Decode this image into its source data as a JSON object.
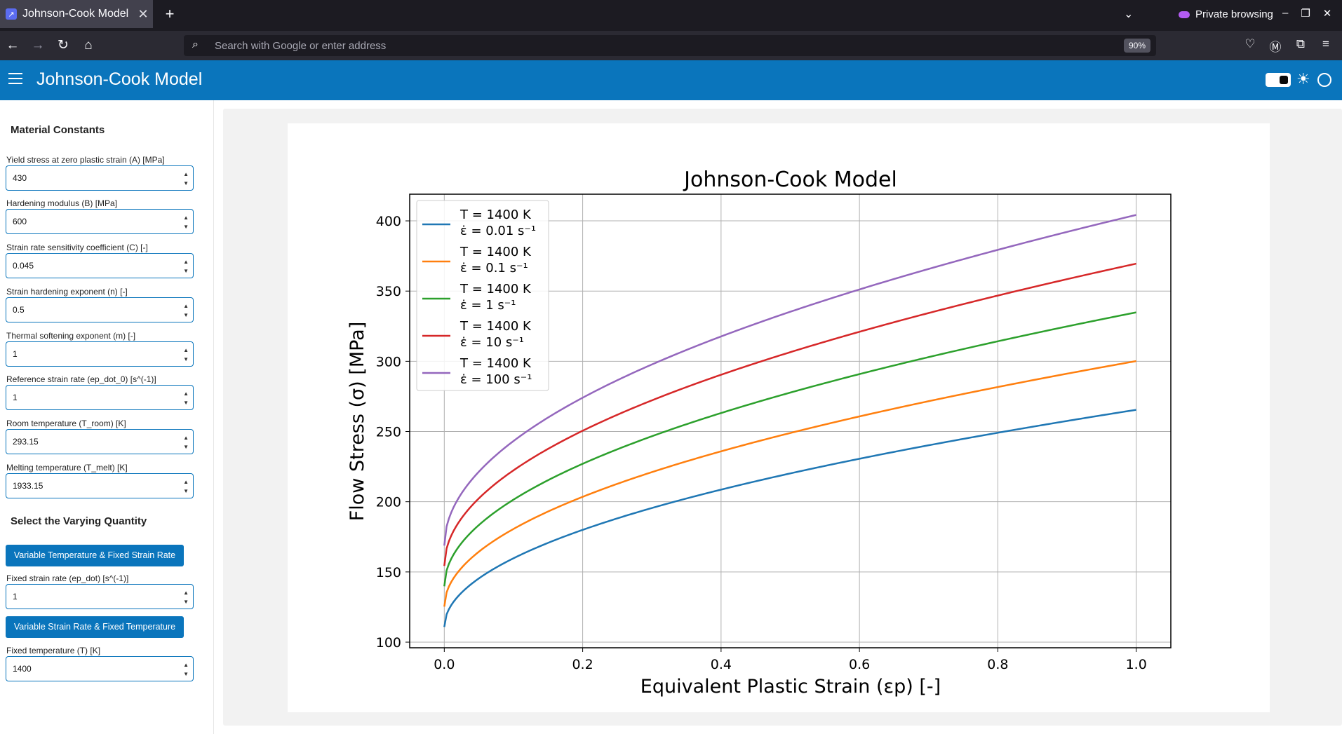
{
  "browser": {
    "tab_title": "Johnson-Cook Model",
    "private_label": "Private browsing",
    "search_placeholder": "Search with Google or enter address",
    "zoom": "90%"
  },
  "app": {
    "title": "Johnson-Cook Model"
  },
  "sidebar": {
    "material_title": "Material Constants",
    "fields": [
      {
        "label": "Yield stress at zero plastic strain (A) [MPa]",
        "value": "430"
      },
      {
        "label": "Hardening modulus (B) [MPa]",
        "value": "600"
      },
      {
        "label": "Strain rate sensitivity coefficient (C) [-]",
        "value": "0.045"
      },
      {
        "label": "Strain hardening exponent (n) [-]",
        "value": "0.5"
      },
      {
        "label": "Thermal softening exponent (m) [-]",
        "value": "1"
      },
      {
        "label": "Reference strain rate (ep_dot_0) [s^(-1)]",
        "value": "1"
      },
      {
        "label": "Room temperature (T_room) [K]",
        "value": "293.15"
      },
      {
        "label": "Melting temperature (T_melt) [K]",
        "value": "1933.15"
      }
    ],
    "varying_title": "Select the Varying Quantity",
    "btn_var_temp": "Variable Temperature & Fixed Strain Rate",
    "fixed_rate": {
      "label": "Fixed strain rate (ep_dot) [s^(-1)]",
      "value": "1"
    },
    "btn_var_rate": "Variable Strain Rate & Fixed Temperature",
    "fixed_temp": {
      "label": "Fixed temperature (T) [K]",
      "value": "1400"
    }
  },
  "chart_data": {
    "type": "line",
    "title": "Johnson-Cook Model",
    "xlabel": "Equivalent Plastic Strain (εp) [-]",
    "ylabel": "Flow Stress (σ) [MPa]",
    "xlim": [
      -0.05,
      1.05
    ],
    "ylim": [
      96,
      419
    ],
    "xticks": [
      "0.0",
      "0.2",
      "0.4",
      "0.6",
      "0.8",
      "1.0"
    ],
    "yticks": [
      "100",
      "150",
      "200",
      "250",
      "300",
      "350",
      "400"
    ],
    "grid": true,
    "legend_position": "top-left",
    "model": {
      "A": 430,
      "B": 600,
      "C": 0.045,
      "n": 0.5,
      "m": 1,
      "ep_dot_0": 1,
      "T_room": 293.15,
      "T_melt": 1933.15,
      "T": 1400
    },
    "series": [
      {
        "name": "T = 1400 K, ε̇ = 0.01 s⁻¹",
        "temp_text": "T = 1400 K",
        "rate_text": "ε̇ = 0.01 s⁻¹",
        "rate": 0.01,
        "color": "#1f77b4"
      },
      {
        "name": "T = 1400 K, ε̇ = 0.1 s⁻¹",
        "temp_text": "T = 1400 K",
        "rate_text": "ε̇ = 0.1 s⁻¹",
        "rate": 0.1,
        "color": "#ff7f0e"
      },
      {
        "name": "T = 1400 K, ε̇ = 1 s⁻¹",
        "temp_text": "T = 1400 K",
        "rate_text": "ε̇ = 1 s⁻¹",
        "rate": 1,
        "color": "#2ca02c"
      },
      {
        "name": "T = 1400 K, ε̇ = 10 s⁻¹",
        "temp_text": "T = 1400 K",
        "rate_text": "ε̇ = 10 s⁻¹",
        "rate": 10,
        "color": "#d62728"
      },
      {
        "name": "T = 1400 K, ε̇ = 100 s⁻¹",
        "temp_text": "T = 1400 K",
        "rate_text": "ε̇ = 100 s⁻¹",
        "rate": 100,
        "color": "#9467bd"
      }
    ]
  }
}
